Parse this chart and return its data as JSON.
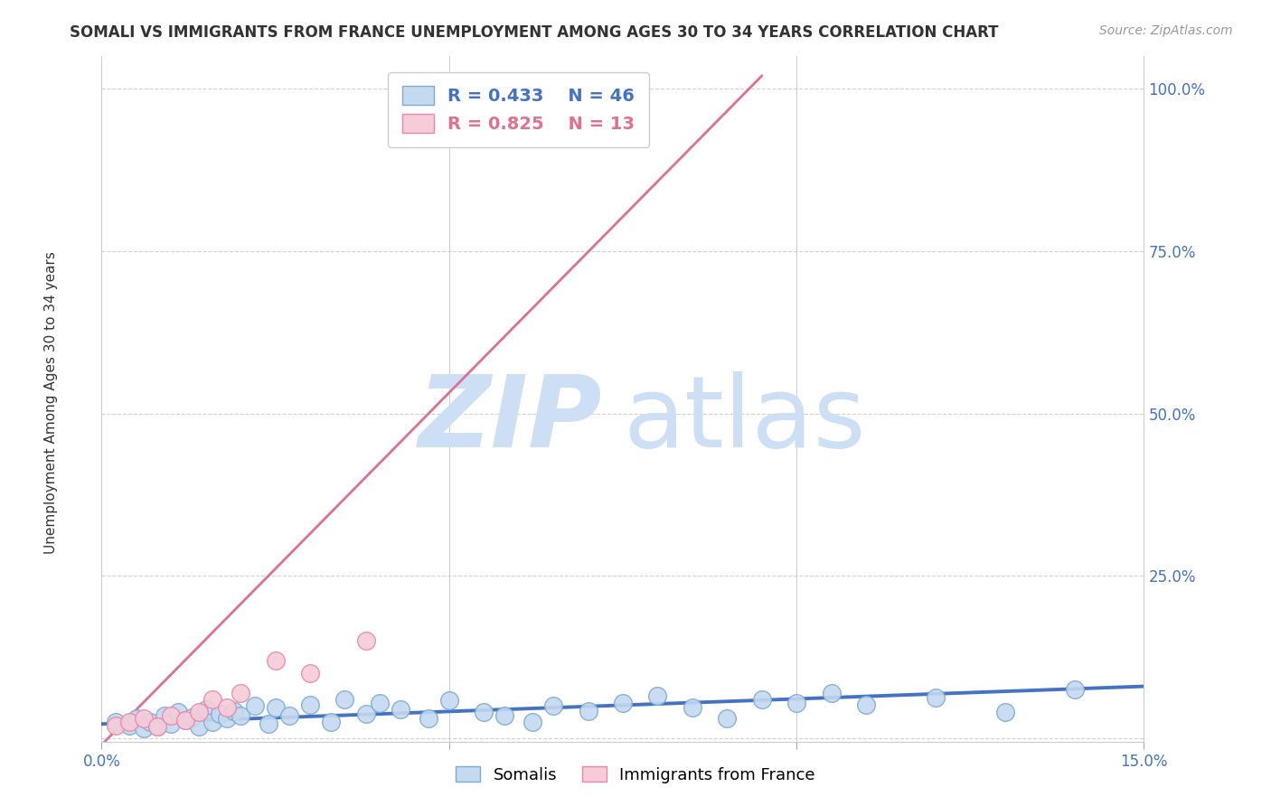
{
  "title": "SOMALI VS IMMIGRANTS FROM FRANCE UNEMPLOYMENT AMONG AGES 30 TO 34 YEARS CORRELATION CHART",
  "source_text": "Source: ZipAtlas.com",
  "ylabel": "Unemployment Among Ages 30 to 34 years",
  "xlim": [
    0.0,
    0.15
  ],
  "ylim": [
    -0.005,
    1.05
  ],
  "xticks": [
    0.0,
    0.05,
    0.1,
    0.15
  ],
  "xticklabels": [
    "0.0%",
    "",
    "",
    "15.0%"
  ],
  "yticks": [
    0.0,
    0.25,
    0.5,
    0.75,
    1.0
  ],
  "yticklabels": [
    "",
    "25.0%",
    "50.0%",
    "75.0%",
    "100.0%"
  ],
  "grid_color": "#cccccc",
  "background_color": "#ffffff",
  "somali_color": "#c5d9f0",
  "somali_edge_color": "#7aadd4",
  "france_color": "#f5ccd8",
  "france_edge_color": "#e888aa",
  "somali_R": 0.433,
  "somali_N": 46,
  "france_R": 0.825,
  "france_N": 13,
  "somali_line_color": "#4472c4",
  "france_line_color": "#e07090",
  "watermark_zip_color": "#ccdff5",
  "watermark_atlas_color": "#ccdff5",
  "legend_label_somali": "Somalis",
  "legend_label_france": "Immigrants from France",
  "somali_scatter_x": [
    0.002,
    0.004,
    0.005,
    0.006,
    0.007,
    0.008,
    0.009,
    0.01,
    0.011,
    0.012,
    0.013,
    0.014,
    0.015,
    0.016,
    0.017,
    0.018,
    0.019,
    0.02,
    0.022,
    0.024,
    0.025,
    0.027,
    0.03,
    0.033,
    0.035,
    0.038,
    0.04,
    0.043,
    0.047,
    0.05,
    0.055,
    0.058,
    0.062,
    0.065,
    0.07,
    0.075,
    0.08,
    0.085,
    0.09,
    0.095,
    0.1,
    0.105,
    0.11,
    0.12,
    0.13,
    0.14
  ],
  "somali_scatter_y": [
    0.025,
    0.02,
    0.03,
    0.015,
    0.025,
    0.018,
    0.035,
    0.022,
    0.04,
    0.028,
    0.032,
    0.018,
    0.045,
    0.025,
    0.038,
    0.03,
    0.042,
    0.035,
    0.05,
    0.022,
    0.048,
    0.035,
    0.052,
    0.025,
    0.06,
    0.038,
    0.055,
    0.045,
    0.03,
    0.058,
    0.04,
    0.035,
    0.025,
    0.05,
    0.042,
    0.055,
    0.065,
    0.048,
    0.03,
    0.06,
    0.055,
    0.07,
    0.052,
    0.062,
    0.04,
    0.075
  ],
  "france_scatter_x": [
    0.002,
    0.004,
    0.006,
    0.008,
    0.01,
    0.012,
    0.014,
    0.016,
    0.018,
    0.02,
    0.025,
    0.03,
    0.038
  ],
  "france_scatter_y": [
    0.02,
    0.025,
    0.03,
    0.018,
    0.035,
    0.028,
    0.04,
    0.06,
    0.048,
    0.07,
    0.12,
    0.1,
    0.15
  ],
  "somali_trend_x": [
    0.0,
    0.15
  ],
  "somali_trend_y": [
    0.022,
    0.08
  ],
  "france_trend_x": [
    0.0,
    0.095
  ],
  "france_trend_y": [
    -0.01,
    1.02
  ],
  "title_fontsize": 12,
  "tick_fontsize": 12,
  "ylabel_fontsize": 11
}
